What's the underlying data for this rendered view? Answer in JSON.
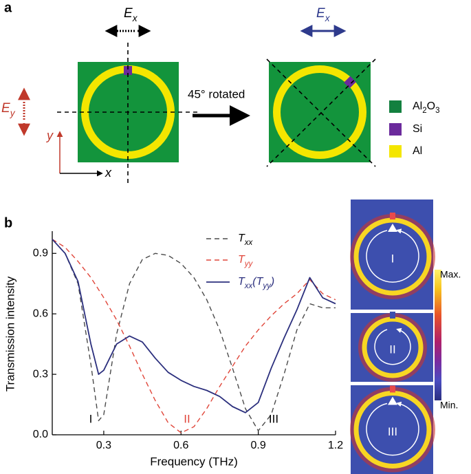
{
  "panel_a": {
    "label": "a",
    "ex_left": "Ex",
    "ex_right": "Ex",
    "ey": "Ey",
    "axis_y": "y",
    "axis_x": "x",
    "rotation": "45° rotated",
    "legend": [
      {
        "text": "Al2O3",
        "color": "#13803f"
      },
      {
        "text": "Si",
        "color": "#6b2a9c"
      },
      {
        "text": "Al",
        "color": "#f4e600"
      }
    ]
  },
  "chart_data": {
    "type": "line",
    "panel_label": "b",
    "xlabel": "Frequency (THz)",
    "ylabel": "Transmission intensity",
    "x": [
      0.1,
      0.15,
      0.2,
      0.25,
      0.28,
      0.3,
      0.35,
      0.4,
      0.45,
      0.5,
      0.55,
      0.6,
      0.65,
      0.7,
      0.75,
      0.8,
      0.85,
      0.9,
      0.95,
      1.0,
      1.05,
      1.1,
      1.15,
      1.2
    ],
    "series": [
      {
        "name": "Txx",
        "color": "#4a4a4a",
        "dashed": true,
        "values": [
          0.97,
          0.9,
          0.75,
          0.35,
          0.07,
          0.1,
          0.5,
          0.75,
          0.87,
          0.9,
          0.89,
          0.85,
          0.78,
          0.67,
          0.52,
          0.33,
          0.13,
          0.02,
          0.1,
          0.3,
          0.52,
          0.65,
          0.63,
          0.63
        ]
      },
      {
        "name": "Tyy",
        "color": "#e0463a",
        "dashed": true,
        "values": [
          0.97,
          0.93,
          0.86,
          0.78,
          0.72,
          0.68,
          0.57,
          0.44,
          0.3,
          0.17,
          0.06,
          0.01,
          0.04,
          0.13,
          0.24,
          0.34,
          0.44,
          0.52,
          0.59,
          0.65,
          0.7,
          0.77,
          0.7,
          0.67
        ]
      },
      {
        "name": "Txx(Tyy)",
        "color": "#2b2f7d",
        "dashed": false,
        "values": [
          0.97,
          0.9,
          0.76,
          0.45,
          0.3,
          0.32,
          0.45,
          0.49,
          0.46,
          0.38,
          0.31,
          0.27,
          0.24,
          0.22,
          0.19,
          0.14,
          0.11,
          0.16,
          0.33,
          0.48,
          0.62,
          0.78,
          0.68,
          0.65
        ]
      }
    ],
    "xlim": [
      0.1,
      1.2
    ],
    "ylim": [
      0,
      1
    ],
    "xticks": [
      0.3,
      0.6,
      0.9,
      1.2
    ],
    "yticks": [
      {
        "value": 0,
        "label": "0.0"
      },
      0.3,
      0.6,
      0.9
    ],
    "annotations": [
      {
        "text": "I",
        "color": "#000000"
      },
      {
        "text": "II",
        "color": "#e0463a"
      },
      {
        "text": "III",
        "color": "#000000"
      }
    ]
  },
  "field_maps": {
    "modes": [
      "I",
      "II",
      "III"
    ],
    "colorbar_max": "Max.",
    "colorbar_min": "Min."
  }
}
